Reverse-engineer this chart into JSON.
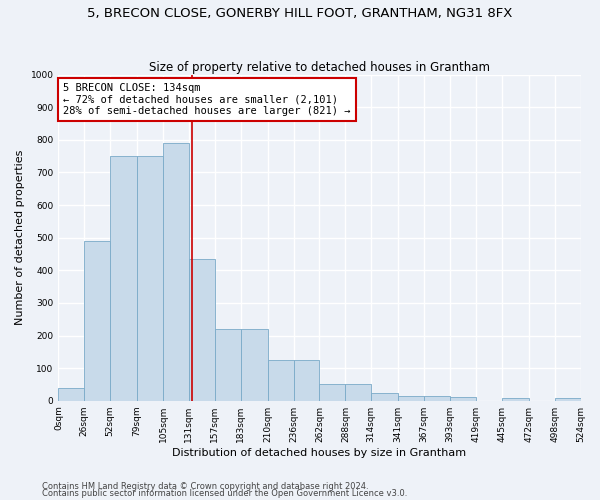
{
  "title": "5, BRECON CLOSE, GONERBY HILL FOOT, GRANTHAM, NG31 8FX",
  "subtitle": "Size of property relative to detached houses in Grantham",
  "xlabel": "Distribution of detached houses by size in Grantham",
  "ylabel": "Number of detached properties",
  "bin_edges": [
    0,
    26,
    52,
    79,
    105,
    131,
    157,
    183,
    210,
    236,
    262,
    288,
    314,
    341,
    367,
    393,
    419,
    445,
    472,
    498,
    524
  ],
  "bar_heights": [
    40,
    490,
    750,
    750,
    790,
    435,
    220,
    220,
    125,
    125,
    50,
    50,
    25,
    15,
    15,
    10,
    0,
    8,
    0,
    8
  ],
  "bar_color": "#c8daea",
  "bar_edge_color": "#7aaac8",
  "vline_x": 134,
  "vline_color": "#cc0000",
  "annotation_text": "5 BRECON CLOSE: 134sqm\n← 72% of detached houses are smaller (2,101)\n28% of semi-detached houses are larger (821) →",
  "annotation_box_color": "#ffffff",
  "annotation_box_edge": "#cc0000",
  "ylim": [
    0,
    1000
  ],
  "yticks": [
    0,
    100,
    200,
    300,
    400,
    500,
    600,
    700,
    800,
    900,
    1000
  ],
  "footer1": "Contains HM Land Registry data © Crown copyright and database right 2024.",
  "footer2": "Contains public sector information licensed under the Open Government Licence v3.0.",
  "background_color": "#eef2f8",
  "grid_color": "#ffffff",
  "title_fontsize": 9.5,
  "subtitle_fontsize": 8.5,
  "ylabel_fontsize": 8,
  "xlabel_fontsize": 8,
  "tick_fontsize": 6.5,
  "annotation_fontsize": 7.5,
  "footer_fontsize": 6
}
